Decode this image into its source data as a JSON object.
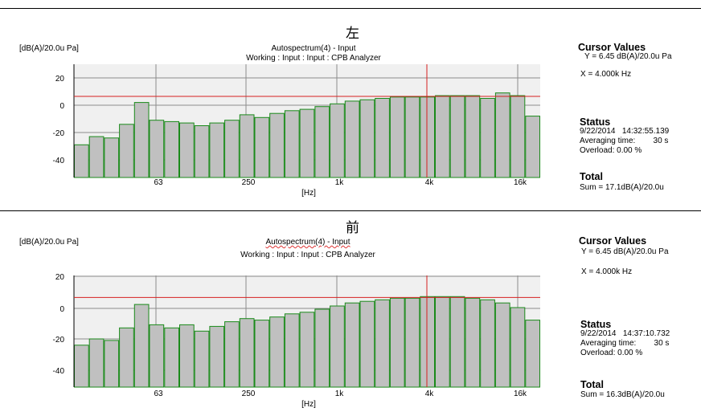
{
  "panels": [
    {
      "label": "左",
      "unit": "[dB(A)/20.0u Pa]",
      "title_line1": "Autospectrum(4) - Input",
      "title_line2": "Working : Input : Input : CPB Analyzer",
      "xlabel": "[Hz]",
      "cursor_heading": "Cursor Values",
      "cursor_y": "Y = 6.45 dB(A)/20.0u  Pa",
      "cursor_x": "X = 4.000k Hz",
      "status_heading": "Status",
      "status_datetime": "9/22/2014   14:32:55.139",
      "averaging_time": "Averaging time:        30 s",
      "overload": "Overload: 0.00 %",
      "total_heading": "Total",
      "total_sum": "Sum = 17.1dB(A)/20.0u"
    },
    {
      "label": "前",
      "unit": "[dB(A)/20.0u Pa]",
      "title_line1": "Autospectrum(4) - Input",
      "title_line2": "Working : Input : Input : CPB Analyzer",
      "xlabel": "[Hz]",
      "cursor_heading": "Cursor Values",
      "cursor_y": "Y = 6.45 dB(A)/20.0u Pa",
      "cursor_x": "X = 4.000k Hz",
      "status_heading": "Status",
      "status_datetime": "9/22/2014   14:37:10.732",
      "averaging_time": "Averaging time:        30 s",
      "overload": "Overload: 0.00 %",
      "total_heading": "Total",
      "total_sum": "Sum = 16.3dB(A)/20.0u"
    }
  ],
  "chart_data": [
    {
      "type": "bar",
      "title": "Autospectrum(4) - Input",
      "subtitle": "Working : Input : Input : CPB Analyzer",
      "xlabel": "[Hz]",
      "ylabel": "[dB(A)/20.0u Pa]",
      "ylim": [
        -50,
        30
      ],
      "yticks": [
        20,
        0,
        -20,
        -40
      ],
      "xtick_labels": [
        "63",
        "250",
        "1k",
        "4k",
        "16k"
      ],
      "x_scale": "log (1/3-octave bands)",
      "grid": true,
      "bar_color": "#c0c0c0",
      "bar_edge_color": "#1a8a1a",
      "cursor_color": "#d62020",
      "cursor_x_hz": 4000,
      "cursor_y": 6.45,
      "values": [
        -29,
        -23,
        -24,
        -14,
        2,
        -11,
        -12,
        -13,
        -15,
        -13,
        -11,
        -7,
        -9,
        -6,
        -4,
        -3,
        -1,
        1,
        3,
        4,
        5,
        6,
        6,
        6,
        7,
        7,
        7,
        5,
        9,
        7,
        -8
      ]
    },
    {
      "type": "bar",
      "title": "Autospectrum(4) - Input",
      "subtitle": "Working : Input : Input : CPB Analyzer",
      "xlabel": "[Hz]",
      "ylabel": "[dB(A)/20.0u Pa]",
      "ylim": [
        -50,
        30
      ],
      "yticks": [
        20,
        0,
        -20,
        -40
      ],
      "xtick_labels": [
        "63",
        "250",
        "1k",
        "4k",
        "16k"
      ],
      "x_scale": "log (1/3-octave bands)",
      "grid": true,
      "bar_color": "#c0c0c0",
      "bar_edge_color": "#1a8a1a",
      "cursor_color": "#d62020",
      "cursor_x_hz": 4000,
      "cursor_y": 6.45,
      "values": [
        -24,
        -20,
        -21,
        -13,
        2,
        -11,
        -13,
        -11,
        -15,
        -12,
        -9,
        -7,
        -8,
        -6,
        -4,
        -3,
        -1,
        1,
        3,
        4,
        5,
        6,
        6,
        7,
        7,
        7,
        6,
        5,
        3,
        0,
        -8
      ]
    }
  ]
}
